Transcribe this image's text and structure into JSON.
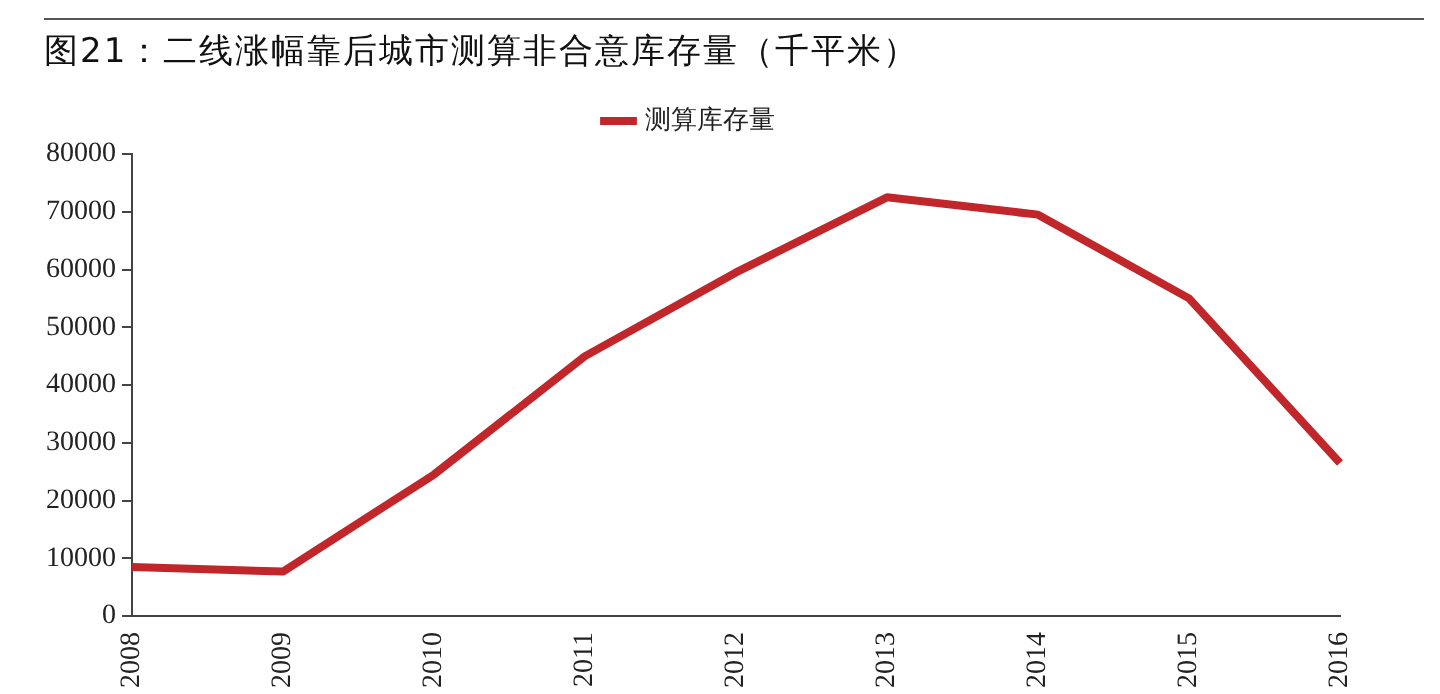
{
  "chart_data": {
    "type": "line",
    "title": "图21：二线涨幅靠后城市测算非合意库存量（千平米）",
    "categories": [
      "2008",
      "2009",
      "2010",
      "2011",
      "2012",
      "2013",
      "2014",
      "2015",
      "2016"
    ],
    "series": [
      {
        "name": "测算库存量",
        "color": "#c0262a",
        "values": [
          8500,
          7700,
          24500,
          45000,
          59500,
          72500,
          69500,
          55000,
          26500
        ]
      }
    ],
    "ylim": [
      0,
      80000
    ],
    "yticks": [
      0,
      10000,
      20000,
      30000,
      40000,
      50000,
      60000,
      70000,
      80000
    ],
    "grid": false,
    "legend": "top",
    "marker": "none",
    "line_style": "solid"
  }
}
